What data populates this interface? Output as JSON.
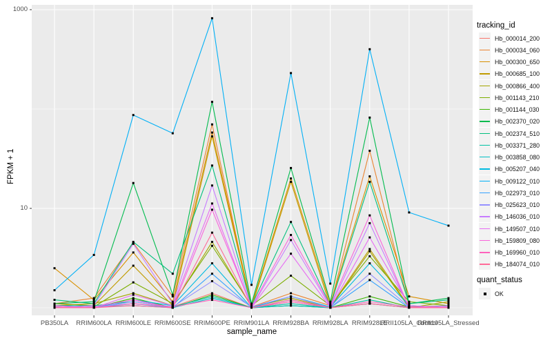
{
  "figure": {
    "x_axis_title": "sample_name",
    "y_axis_title": "FPKM + 1"
  },
  "legend": {
    "tracking_id_title": "tracking_id",
    "quant_status_title": "quant_status",
    "quant_status_items": [
      {
        "label": "OK"
      }
    ]
  },
  "chart_data": {
    "type": "line",
    "title": "",
    "xlabel": "sample_name",
    "ylabel": "FPKM + 1",
    "yscale": "log10",
    "ylim": [
      0.85,
      1200
    ],
    "yticks": [
      10,
      1000
    ],
    "ytick_labels": [
      "10",
      "1000"
    ],
    "minor_gridlines": [
      1,
      100
    ],
    "grid": true,
    "legend_position": "right",
    "panel_bg": "#EBEBEB",
    "grid_color": "#FFFFFF",
    "point_shape": "filled-square",
    "point_color": "#000000",
    "quant_status": "OK",
    "categories": [
      "PB350LA",
      "RRIM600LA",
      "RRIM600LE",
      "RRIM600SE",
      "RRIM600PE",
      "RRIM901LA",
      "RRIM928BA",
      "RRIM928LA",
      "RRIM928LE",
      "RRII105LA_Control",
      "RRII105LA_Stressed"
    ],
    "series": [
      {
        "name": "Hb_000014_200",
        "color": "#F8766D",
        "values": [
          1.02,
          1.0,
          1.1,
          1.02,
          1.4,
          1.0,
          1.15,
          1.0,
          1.1,
          1.0,
          1.02
        ]
      },
      {
        "name": "Hb_000034_060",
        "color": "#EA8331",
        "values": [
          1.1,
          1.25,
          4.5,
          1.3,
          70,
          1.02,
          1.4,
          1.05,
          38,
          1.05,
          1.0
        ]
      },
      {
        "name": "Hb_000300_650",
        "color": "#D89000",
        "values": [
          2.5,
          1.2,
          3.6,
          1.15,
          58,
          1.05,
          20,
          1.1,
          21,
          1.3,
          1.1
        ]
      },
      {
        "name": "Hb_000685_100",
        "color": "#C09B00",
        "values": [
          1.1,
          1.05,
          2.65,
          1.05,
          53,
          1.0,
          18.5,
          1.02,
          3.9,
          1.02,
          1.05
        ]
      },
      {
        "name": "Hb_000866_400",
        "color": "#A3A500",
        "values": [
          1.05,
          1.1,
          1.4,
          1.05,
          4.6,
          1.02,
          1.25,
          1.0,
          3.7,
          1.0,
          1.15
        ]
      },
      {
        "name": "Hb_001143_210",
        "color": "#7CAE00",
        "values": [
          1.0,
          1.02,
          1.8,
          1.1,
          4.2,
          1.05,
          2.1,
          1.05,
          3.3,
          1.15,
          1.05
        ]
      },
      {
        "name": "Hb_001144_030",
        "color": "#39B600",
        "values": [
          1.02,
          1.0,
          1.25,
          1.0,
          1.35,
          1.0,
          1.05,
          1.0,
          1.3,
          1.02,
          1.0
        ]
      },
      {
        "name": "Hb_002370_020",
        "color": "#00BB4E",
        "values": [
          1.1,
          1.15,
          18,
          1.35,
          118,
          1.1,
          25.5,
          1.15,
          82,
          1.1,
          1.25
        ]
      },
      {
        "name": "Hb_002374_510",
        "color": "#00BF7D",
        "values": [
          1.2,
          1.1,
          4.6,
          2.2,
          27,
          1.05,
          7.3,
          1.05,
          18.5,
          1.1,
          1.2
        ]
      },
      {
        "name": "Hb_003371_280",
        "color": "#00C1A3",
        "values": [
          1.05,
          1.05,
          1.15,
          1.02,
          1.3,
          1.0,
          1.1,
          1.0,
          1.2,
          1.0,
          1.05
        ]
      },
      {
        "name": "Hb_003858_080",
        "color": "#00BFC4",
        "values": [
          1.0,
          1.02,
          1.05,
          1.0,
          1.25,
          1.0,
          1.05,
          1.0,
          1.1,
          1.0,
          1.0
        ]
      },
      {
        "name": "Hb_005207_040",
        "color": "#00BAE0",
        "values": [
          1.02,
          1.0,
          1.2,
          1.05,
          2.8,
          1.0,
          1.3,
          1.02,
          2.8,
          1.05,
          1.0
        ]
      },
      {
        "name": "Hb_009122_010",
        "color": "#00B0F6",
        "values": [
          1.5,
          3.4,
          87,
          57,
          820,
          1.7,
          230,
          1.75,
          400,
          9.1,
          6.7
        ]
      },
      {
        "name": "Hb_022973_010",
        "color": "#35A2FF",
        "values": [
          1.0,
          1.02,
          1.1,
          1.0,
          2.2,
          1.0,
          1.2,
          1.0,
          1.9,
          1.0,
          1.02
        ]
      },
      {
        "name": "Hb_025623_010",
        "color": "#9590FF",
        "values": [
          1.02,
          1.0,
          1.15,
          1.02,
          1.85,
          1.02,
          1.3,
          1.0,
          2.2,
          1.02,
          1.0
        ]
      },
      {
        "name": "Hb_146036_010",
        "color": "#C77CFF",
        "values": [
          1.0,
          1.05,
          4.4,
          1.1,
          17,
          1.0,
          4.8,
          1.02,
          7.1,
          1.0,
          1.05
        ]
      },
      {
        "name": "Hb_149507_010",
        "color": "#E76BF3",
        "values": [
          1.05,
          1.0,
          1.35,
          1.05,
          11.2,
          1.0,
          3.5,
          1.0,
          5.1,
          1.05,
          1.0
        ]
      },
      {
        "name": "Hb_159809_080",
        "color": "#FA62DB",
        "values": [
          1.0,
          1.02,
          1.2,
          1.0,
          9.7,
          1.02,
          5.4,
          1.05,
          8.5,
          1.0,
          1.02
        ]
      },
      {
        "name": "Hb_169960_010",
        "color": "#FF62BC",
        "values": [
          1.02,
          1.0,
          1.1,
          1.02,
          1.2,
          1.0,
          1.15,
          1.0,
          1.15,
          1.02,
          1.0
        ]
      },
      {
        "name": "Hb_184074_010",
        "color": "#FF6A98",
        "values": [
          1.0,
          1.0,
          1.05,
          1.0,
          5.7,
          1.0,
          1.2,
          1.0,
          1.1,
          1.0,
          1.0
        ]
      }
    ]
  }
}
